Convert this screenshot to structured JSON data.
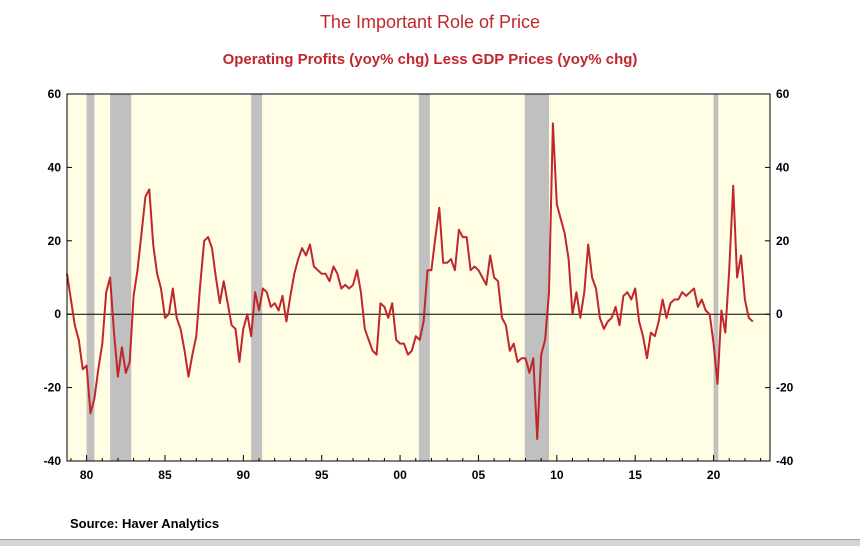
{
  "chart_data": {
    "type": "line",
    "title": "The Important Role of Price",
    "subtitle": "Operating Profits (yoy% chg) Less GDP Prices (yoy% chg)",
    "source": "Source:  Haver Analytics",
    "colors": {
      "line": "#c0272d",
      "recession": "#c0c0c0",
      "background": "#fffde3",
      "title": "#c0272d"
    },
    "grid": false,
    "xlim": [
      1978.75,
      2023.6
    ],
    "ylim": [
      -40,
      60
    ],
    "x_ticks": [
      1980,
      1985,
      1990,
      1995,
      2000,
      2005,
      2010,
      2015,
      2020
    ],
    "x_tick_labels": [
      "80",
      "85",
      "90",
      "95",
      "00",
      "05",
      "10",
      "15",
      "20"
    ],
    "y_ticks": [
      -40,
      -20,
      0,
      20,
      40,
      60
    ],
    "y_tick_labels": [
      "-40",
      "-20",
      "0",
      "20",
      "40",
      "60"
    ],
    "recessions": [
      [
        1980.0,
        1980.5
      ],
      [
        1981.5,
        1982.85
      ],
      [
        1990.5,
        1991.2
      ],
      [
        2001.2,
        2001.9
      ],
      [
        2007.95,
        2009.5
      ],
      [
        2020.0,
        2020.3
      ]
    ],
    "series": [
      {
        "x": [
          1978.75,
          1979.0,
          1979.25,
          1979.5,
          1979.75,
          1980.0,
          1980.25,
          1980.5,
          1980.75,
          1981.0,
          1981.25,
          1981.5,
          1981.75,
          1982.0,
          1982.25,
          1982.5,
          1982.75,
          1983.0,
          1983.25,
          1983.5,
          1983.75,
          1984.0,
          1984.25,
          1984.5,
          1984.75,
          1985.0,
          1985.25,
          1985.5,
          1985.75,
          1986.0,
          1986.25,
          1986.5,
          1986.75,
          1987.0,
          1987.25,
          1987.5,
          1987.75,
          1988.0,
          1988.25,
          1988.5,
          1988.75,
          1989.0,
          1989.25,
          1989.5,
          1989.75,
          1990.0,
          1990.25,
          1990.5,
          1990.75,
          1991.0,
          1991.25,
          1991.5,
          1991.75,
          1992.0,
          1992.25,
          1992.5,
          1992.75,
          1993.0,
          1993.25,
          1993.5,
          1993.75,
          1994.0,
          1994.25,
          1994.5,
          1994.75,
          1995.0,
          1995.25,
          1995.5,
          1995.75,
          1996.0,
          1996.25,
          1996.5,
          1996.75,
          1997.0,
          1997.25,
          1997.5,
          1997.75,
          1998.0,
          1998.25,
          1998.5,
          1998.75,
          1999.0,
          1999.25,
          1999.5,
          1999.75,
          2000.0,
          2000.25,
          2000.5,
          2000.75,
          2001.0,
          2001.25,
          2001.5,
          2001.75,
          2002.0,
          2002.25,
          2002.5,
          2002.75,
          2003.0,
          2003.25,
          2003.5,
          2003.75,
          2004.0,
          2004.25,
          2004.5,
          2004.75,
          2005.0,
          2005.25,
          2005.5,
          2005.75,
          2006.0,
          2006.25,
          2006.5,
          2006.75,
          2007.0,
          2007.25,
          2007.5,
          2007.75,
          2008.0,
          2008.25,
          2008.5,
          2008.75,
          2009.0,
          2009.25,
          2009.5,
          2009.75,
          2010.0,
          2010.25,
          2010.5,
          2010.75,
          2011.0,
          2011.25,
          2011.5,
          2011.75,
          2012.0,
          2012.25,
          2012.5,
          2012.75,
          2013.0,
          2013.25,
          2013.5,
          2013.75,
          2014.0,
          2014.25,
          2014.5,
          2014.75,
          2015.0,
          2015.25,
          2015.5,
          2015.75,
          2016.0,
          2016.25,
          2016.5,
          2016.75,
          2017.0,
          2017.25,
          2017.5,
          2017.75,
          2018.0,
          2018.25,
          2018.5,
          2018.75,
          2019.0,
          2019.25,
          2019.5,
          2019.75,
          2020.0,
          2020.25,
          2020.5,
          2020.75,
          2021.0,
          2021.25,
          2021.5,
          2021.75,
          2022.0,
          2022.25,
          2022.5
        ],
        "values": [
          11,
          4,
          -3,
          -7,
          -15,
          -14,
          -27,
          -23,
          -15,
          -8,
          6,
          10,
          -5,
          -17,
          -9,
          -16,
          -13,
          5,
          12,
          22,
          32,
          34,
          19,
          11,
          7,
          -1,
          0,
          7,
          -1,
          -4,
          -10,
          -17,
          -11,
          -6,
          8,
          20,
          21,
          18,
          10,
          3,
          9,
          3,
          -3,
          -4,
          -13,
          -4,
          0,
          -6,
          6,
          1,
          7,
          6,
          2,
          3,
          1,
          5,
          -2,
          5,
          11,
          15,
          18,
          16,
          19,
          13,
          12,
          11,
          11,
          9,
          13,
          11,
          7,
          8,
          7,
          8,
          12,
          6,
          -4,
          -7,
          -10,
          -11,
          3,
          2,
          -1,
          3,
          -7,
          -8,
          -8,
          -11,
          -10,
          -6,
          -7,
          -2,
          12,
          12,
          21,
          29,
          14,
          14,
          15,
          12,
          23,
          21,
          21,
          12,
          13,
          12,
          10,
          8,
          16,
          10,
          9,
          -1,
          -3,
          -10,
          -8,
          -13,
          -12,
          -12,
          -16,
          -12,
          -34,
          -11,
          -7,
          6,
          52,
          30,
          26,
          22,
          15,
          0,
          6,
          -1,
          6,
          19,
          10,
          7,
          -1,
          -4,
          -2,
          -1,
          2,
          -3,
          5,
          6,
          4,
          7,
          -2,
          -6,
          -12,
          -5,
          -6,
          -2,
          4,
          -1,
          3,
          4,
          4,
          6,
          5,
          6,
          7,
          2,
          4,
          1,
          0,
          -8,
          -19,
          1,
          -5,
          12,
          35,
          10,
          16,
          4,
          -1,
          -2
        ]
      }
    ]
  }
}
